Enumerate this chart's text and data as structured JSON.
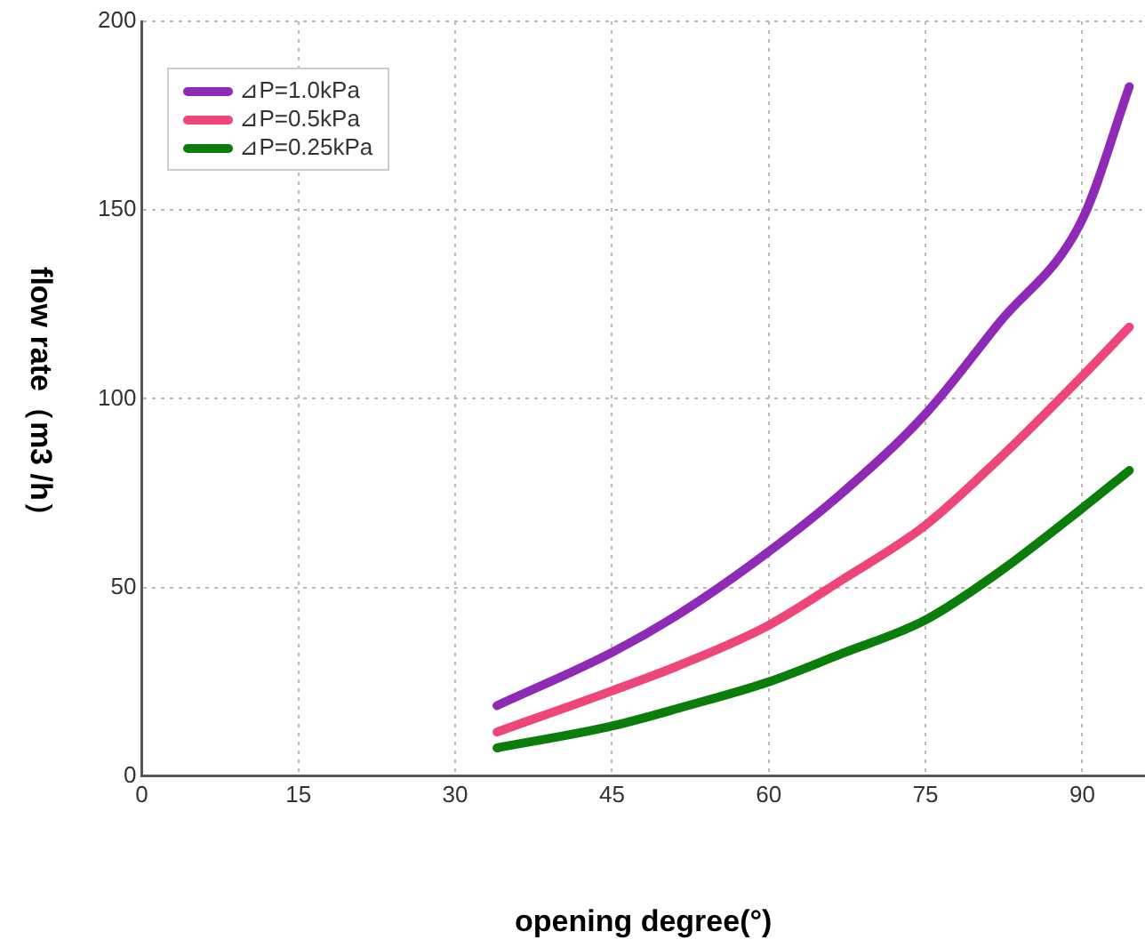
{
  "chart_data": {
    "type": "line",
    "xlabel": "opening degree(°)",
    "ylabel": "flow rate（m3 /h）",
    "x": [
      34,
      45,
      52,
      60,
      67,
      75,
      82,
      90,
      94.5
    ],
    "series": [
      {
        "name": "⊿P=1.0kPa",
        "color": "#8e2ab5",
        "values": [
          18.7,
          32.8,
          44,
          59.5,
          75,
          96,
          120,
          147.5,
          182.7
        ]
      },
      {
        "name": "⊿P=0.5kPa",
        "color": "#ee4679",
        "values": [
          11.7,
          22.6,
          30,
          40,
          52,
          66.5,
          84,
          106,
          119
        ]
      },
      {
        "name": "⊿P=0.25kPa",
        "color": "#0a7d0a",
        "values": [
          7.5,
          13.3,
          18.5,
          25,
          32.5,
          41.4,
          54,
          71,
          81
        ]
      }
    ],
    "xlim": [
      0,
      96
    ],
    "xticks": [
      0,
      15,
      30,
      45,
      60,
      75,
      90
    ],
    "ylim": [
      0,
      200
    ],
    "yticks": [
      0,
      50,
      100,
      150,
      200
    ],
    "grid": true,
    "legend": "top left",
    "marker": "none",
    "line_style": "solid"
  }
}
